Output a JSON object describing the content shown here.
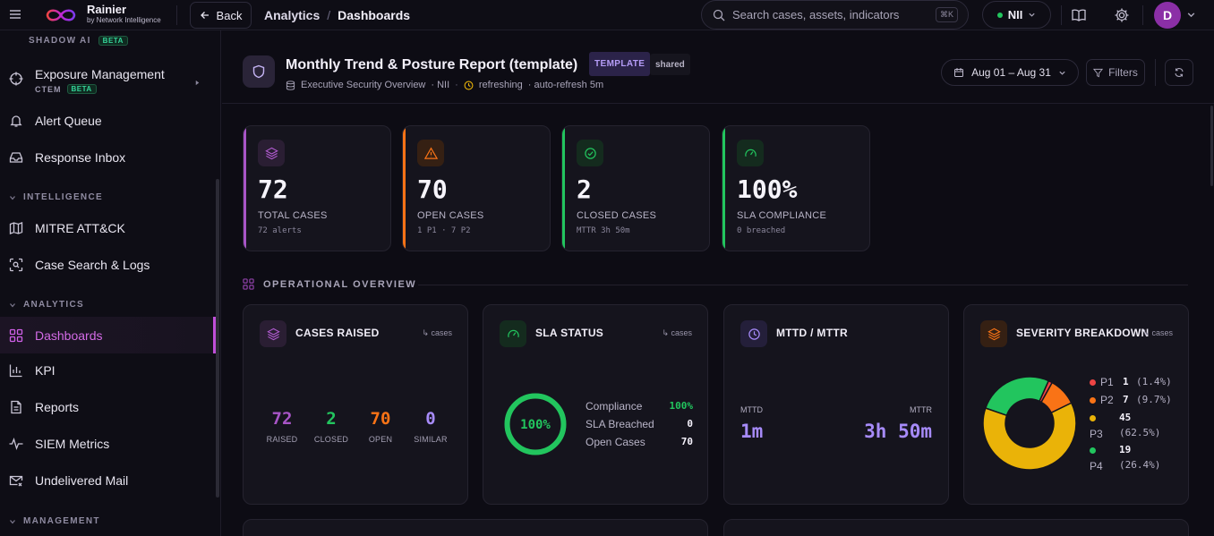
{
  "topbar": {
    "brand_name": "Rainier",
    "brand_sub": "by Network Intelligence",
    "back_label": "Back",
    "breadcrumb": [
      "Analytics",
      "/",
      "Dashboards"
    ],
    "search_placeholder": "Search cases, assets, indicators",
    "search_shortcut": "⌘K",
    "org_label": "NII",
    "avatar_initial": "D"
  },
  "sidebar": {
    "shadow_ai": "SHADOW AI",
    "shadow_badge": "BETA",
    "exposure": "Exposure Management",
    "ctem": "CTEM",
    "ctem_badge": "BETA",
    "alert_queue": "Alert Queue",
    "response_inbox": "Response Inbox",
    "intelligence": "INTELLIGENCE",
    "mitre": "MITRE ATT&CK",
    "case_search": "Case Search & Logs",
    "analytics": "ANALYTICS",
    "dashboards": "Dashboards",
    "kpi": "KPI",
    "reports": "Reports",
    "siem": "SIEM Metrics",
    "undelivered": "Undelivered Mail",
    "management": "MANAGEMENT"
  },
  "header": {
    "title": "Monthly Trend & Posture Report (template)",
    "tag_template": "TEMPLATE",
    "tag_shared": "shared",
    "meta_source": "Executive Security Overview",
    "meta_org": "· NII",
    "meta_status": "refreshing",
    "meta_refresh": "· auto-refresh 5m",
    "date_range": "Aug 01 – Aug 31",
    "filters_label": "Filters"
  },
  "kpis": [
    {
      "value": "72",
      "label": "TOTAL CASES",
      "sub": "72 alerts",
      "color": "#a855c7"
    },
    {
      "value": "70",
      "label": "OPEN CASES",
      "sub": "1 P1 · 7 P2",
      "color": "#f97316"
    },
    {
      "value": "2",
      "label": "CLOSED CASES",
      "sub": "MTTR 3h 50m",
      "color": "#22c55e"
    },
    {
      "value": "100%",
      "label": "SLA COMPLIANCE",
      "sub": "0 breached",
      "color": "#22c55e"
    }
  ],
  "overview_title": "OPERATIONAL OVERVIEW",
  "cases_raised": {
    "title": "CASES RAISED",
    "unit": "↳ cases",
    "stats": [
      {
        "value": "72",
        "label": "RAISED",
        "color": "#a855c7"
      },
      {
        "value": "2",
        "label": "CLOSED",
        "color": "#22c55e"
      },
      {
        "value": "70",
        "label": "OPEN",
        "color": "#f97316"
      },
      {
        "value": "0",
        "label": "SIMILAR",
        "color": "#a78bfa"
      }
    ]
  },
  "sla_status": {
    "title": "SLA STATUS",
    "unit": "↳ cases",
    "ring_value": "100%",
    "ring_fraction": 1.0,
    "rows": [
      {
        "label": "Compliance",
        "value": "100%"
      },
      {
        "label": "SLA Breached",
        "value": "0"
      },
      {
        "label": "Open Cases",
        "value": "70"
      }
    ]
  },
  "mttd_mttr": {
    "title": "MTTD / MTTR",
    "mttd_label": "MTTD",
    "mttd_value": "1m",
    "mttr_label": "MTTR",
    "mttr_value": "3h 50m"
  },
  "severity": {
    "title": "SEVERITY BREAKDOWN",
    "unit": "↳ cases",
    "legend": [
      {
        "name": "P1",
        "count": "1",
        "pct": "(1.4%)",
        "color": "#ef4444"
      },
      {
        "name": "P2",
        "count": "7",
        "pct": "(9.7%)",
        "color": "#f97316"
      },
      {
        "name": "P3",
        "count": "45",
        "pct": "(62.5%)",
        "color": "#eab308"
      },
      {
        "name": "P4",
        "count": "19",
        "pct": "(26.4%)",
        "color": "#22c55e"
      }
    ]
  },
  "chart_data": {
    "type": "pie",
    "title": "SEVERITY BREAKDOWN",
    "categories": [
      "P1",
      "P2",
      "P3",
      "P4"
    ],
    "values": [
      1,
      7,
      45,
      19
    ],
    "colors": [
      "#ef4444",
      "#f97316",
      "#eab308",
      "#22c55e"
    ]
  }
}
